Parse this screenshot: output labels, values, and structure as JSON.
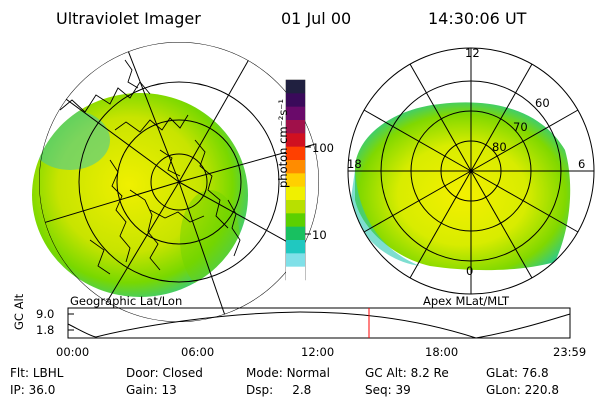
{
  "header": {
    "instrument": "Ultraviolet Imager",
    "date": "01 Jul 00",
    "time": "14:30:06 UT"
  },
  "colorbar": {
    "unit_label": "photon cm⁻²s⁻¹",
    "ticks": [
      "100",
      "10"
    ],
    "colors": [
      "#202040",
      "#3a0a5a",
      "#6a0a6a",
      "#a0104a",
      "#d01020",
      "#ff4000",
      "#ff8c00",
      "#ffd000",
      "#f0f000",
      "#b8e000",
      "#5cd000",
      "#18c060",
      "#20c8c0",
      "#80e0e8",
      "#ffffff"
    ]
  },
  "left_panel": {
    "label": "Geographic Lat/Lon"
  },
  "right_panel": {
    "label": "Apex MLat/MLT",
    "mlt_labels": {
      "top": "12",
      "left": "18",
      "right": "6",
      "bottom": "0"
    },
    "lat_labels": [
      "60",
      "70",
      "80"
    ]
  },
  "altitude_plot": {
    "ylabel": "GC Alt",
    "yticks": [
      "9.0",
      "1.8"
    ],
    "xticks": [
      "00:00",
      "06:00",
      "12:00",
      "18:00",
      "23:59"
    ],
    "current_time_color": "#ff0000"
  },
  "info": {
    "row1": [
      {
        "label": "Flt:",
        "value": "LBHL"
      },
      {
        "label": "Door:",
        "value": "Closed"
      },
      {
        "label": "Mode:",
        "value": "Normal"
      },
      {
        "label": "GC Alt:",
        "value": "8.2 Re"
      },
      {
        "label": "GLat:",
        "value": "76.8"
      }
    ],
    "row2": [
      {
        "label": "IP:",
        "value": "36.0"
      },
      {
        "label": "Gain:",
        "value": "13"
      },
      {
        "label": "Dsp:",
        "value": "2.8"
      },
      {
        "label": "Seq:",
        "value": "39"
      },
      {
        "label": "GLon:",
        "value": "220.8"
      }
    ]
  }
}
